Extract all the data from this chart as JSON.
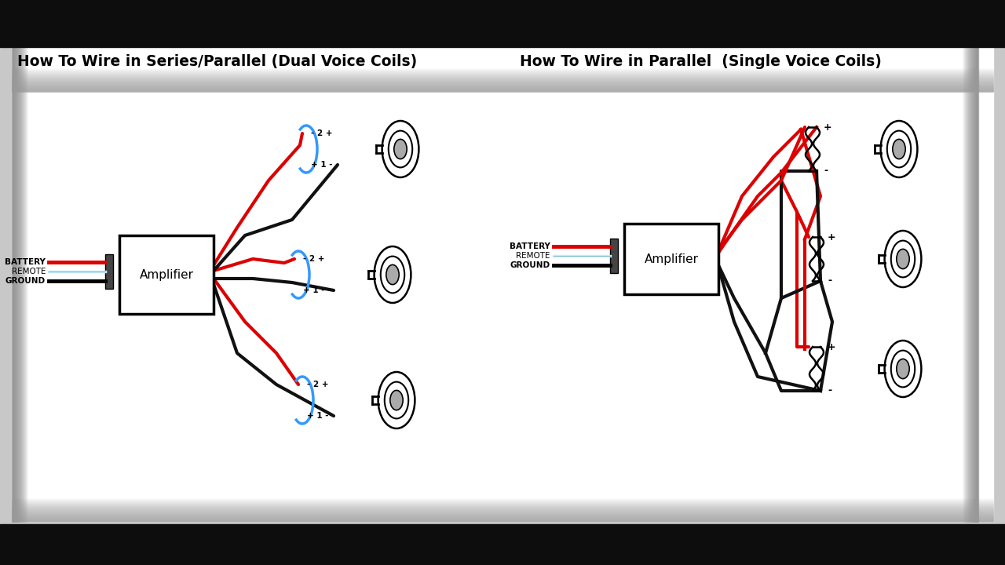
{
  "title_left": "How To Wire in Series/Parallel (Dual Voice Coils)",
  "title_right": "How To Wire in Parallel  (Single Voice Coils)",
  "title_fontsize": 13.5,
  "amp_label": "Amplifier",
  "battery_label": "BATTERY",
  "remote_label": "REMOTE",
  "ground_label": "GROUND",
  "red_wire": "#dd0000",
  "black_wire": "#111111",
  "blue_arc": "#3399ff",
  "bg_white": "#ffffff",
  "bg_outer": "#b0b0b0",
  "bar_color": "#0d0d0d",
  "label_top": "- 2 +",
  "label_bot": "+ 1 -",
  "label_plus": "+",
  "label_minus": "-"
}
